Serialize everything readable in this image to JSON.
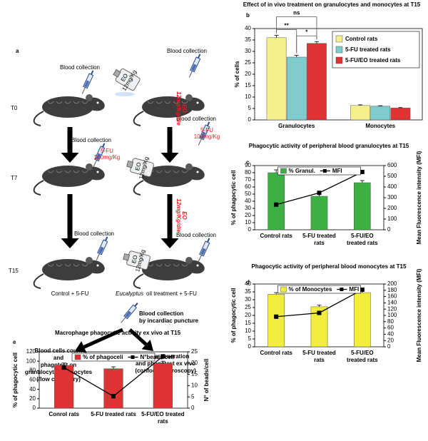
{
  "diagram": {
    "panel": "a",
    "times": [
      "T0",
      "T7",
      "T15"
    ],
    "blood_collection": [
      "Blood collection",
      "Blood collection",
      "Blood collection",
      "Blood collection",
      "Blood collection",
      "Blood collection"
    ],
    "doses_5fu": [
      [
        "5-FU",
        "100mg/Kg"
      ],
      [
        "5-FU",
        "100mg/Kg"
      ]
    ],
    "eo_bottles": [
      [
        "EO",
        "12mg/Kg"
      ],
      [
        "EO",
        "12mg/Kg"
      ],
      [
        "EO",
        "12mg/Kg"
      ]
    ],
    "eo_arrows": [
      [
        "12mg/Kg/die",
        "EO"
      ],
      [
        "12mg/Kg/die",
        "EO"
      ]
    ],
    "groups": {
      "control": "Control + 5-FU",
      "eo_italic": "Eucalyptus",
      "eo_rest": "oil treatment + 5-FU"
    },
    "final_collection": [
      "Blood collection",
      "by incardiac puncture"
    ],
    "outcome_left": [
      "Blood cells count",
      "and",
      "phagotest on",
      "granulocytes/monocytes",
      "(flow cytometry)"
    ],
    "outcome_right": [
      "MDMs generation",
      "and phagotest ex vivo",
      "(confocal microscopy)"
    ]
  },
  "chart_data": [
    {
      "type": "bar",
      "panel": "b",
      "title": "Effect of in vivo treatment on granulocytes and monocytes at T15",
      "categories": [
        "Granulocytes",
        "Monocytes"
      ],
      "series": [
        {
          "name": "Control rats",
          "color": "#f6f08c",
          "type": "bar",
          "values": [
            36,
            6.3
          ],
          "errors": [
            1,
            0.3
          ]
        },
        {
          "name": "5-FU treated rats",
          "color": "#7fcaca",
          "type": "bar",
          "values": [
            27.5,
            6
          ],
          "errors": [
            0.8,
            0.2
          ]
        },
        {
          "name": "5-FU/EO treated rats",
          "color": "#e03232",
          "type": "bar",
          "values": [
            33.5,
            5.2
          ],
          "errors": [
            0.8,
            0.2
          ]
        }
      ],
      "ylabel": "% of cells",
      "ylim": [
        0,
        40
      ],
      "yticks": [
        0,
        5,
        10,
        15,
        20,
        25,
        30,
        35,
        40
      ],
      "legend": "upper right",
      "annotations": [
        {
          "text": "**",
          "from": 0,
          "to": 1
        },
        {
          "text": "ns",
          "from": 0,
          "to": 2
        },
        {
          "text": "*",
          "from": 1,
          "to": 2
        }
      ]
    },
    {
      "type": "bar",
      "panel": "c",
      "title": "Phagocytic activity of peripheral blood granulocytes at T15",
      "categories": [
        "Control rats",
        "5-FU treated rats",
        "5-FU/EO treated rats"
      ],
      "series": [
        {
          "name": "% Granul.",
          "color": "#3cb043",
          "type": "bar",
          "values": [
            80,
            47,
            66
          ],
          "errors": [
            4,
            3,
            3
          ]
        },
        {
          "name": "MFI",
          "color": "#000000",
          "type": "line",
          "axis": "y2",
          "values": [
            235,
            345,
            540
          ]
        }
      ],
      "ylabel": "% of phagocytic cell",
      "ylim": [
        0,
        90
      ],
      "yticks": [
        0,
        10,
        20,
        30,
        40,
        50,
        60,
        70,
        80,
        90
      ],
      "y2label": "Mean Fluorescence intensity (MFI)",
      "y2lim": [
        0,
        600
      ],
      "y2ticks": [
        0,
        100,
        200,
        300,
        400,
        500,
        600
      ],
      "legend": "upper center"
    },
    {
      "type": "bar",
      "panel": "d",
      "title": "Phagocytic activity of peripheral blood monocytes at T15",
      "categories": [
        "Control rats",
        "5-FU treated rats",
        "5-FU/EO treated rats"
      ],
      "series": [
        {
          "name": "% of Monocytes",
          "color": "#f2ec3a",
          "type": "bar",
          "values": [
            33.5,
            25.5,
            34.5
          ],
          "errors": [
            1,
            1,
            1.5
          ]
        },
        {
          "name": "MFI",
          "color": "#000000",
          "type": "line",
          "axis": "y2",
          "values": [
            96,
            108,
            182
          ]
        }
      ],
      "ylabel": "% of phagocytic cell",
      "ylim": [
        0,
        40
      ],
      "yticks": [
        0,
        5,
        10,
        15,
        20,
        25,
        30,
        35,
        40
      ],
      "y2label": "Mean Fluorescence intensity (MFI)",
      "y2lim": [
        0,
        200
      ],
      "y2ticks": [
        0,
        20,
        40,
        60,
        80,
        100,
        120,
        140,
        160,
        180,
        200
      ],
      "legend": "upper center"
    },
    {
      "type": "bar",
      "panel": "e",
      "title": "Macrophage phagocytic activity ex vivo at T15",
      "categories": [
        "Conrol rats",
        "5-FU treated rats",
        "5-FU/EO treated rats"
      ],
      "series": [
        {
          "name": "% of phagoceli",
          "color": "#e03232",
          "type": "bar",
          "values": [
            91,
            84,
            95
          ],
          "errors": [
            5,
            4,
            5
          ]
        },
        {
          "name": "N°beads/cell",
          "color": "#000000",
          "type": "line",
          "axis": "y2",
          "values": [
            18,
            5.3,
            23
          ]
        }
      ],
      "ylabel": "% of phagocytic cell",
      "ylim": [
        0,
        120
      ],
      "yticks": [
        0,
        20,
        40,
        60,
        80,
        100,
        120
      ],
      "y2label": "N° of beads/cell",
      "y2lim": [
        0,
        25
      ],
      "y2ticks": [
        0,
        5,
        10,
        15,
        20,
        25
      ],
      "legend": "upper center"
    }
  ]
}
